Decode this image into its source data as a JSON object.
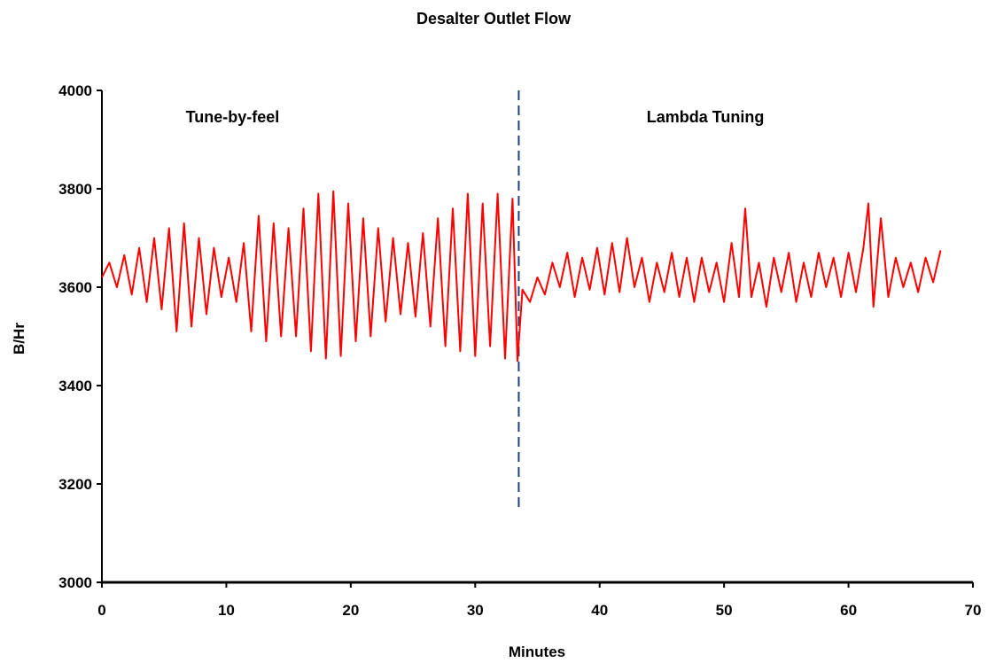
{
  "chart_data": {
    "type": "line",
    "title": "Desalter Outlet Flow",
    "xlabel": "Minutes",
    "ylabel": "B/Hr",
    "xlim": [
      0,
      70
    ],
    "ylim": [
      3000,
      4000
    ],
    "xticks": [
      0,
      10,
      20,
      30,
      40,
      50,
      60,
      70
    ],
    "yticks": [
      3000,
      3200,
      3400,
      3600,
      3800,
      4000
    ],
    "grid": false,
    "line_color": "#ff0000",
    "divider": {
      "x": 33.5,
      "y_range": [
        3150,
        4000
      ],
      "color": "#1f3f7f",
      "style": "dashed"
    },
    "annotations": [
      {
        "text": "Tune-by-feel",
        "x": 10.5,
        "y": 3935
      },
      {
        "text": "Lambda Tuning",
        "x": 48.5,
        "y": 3935
      }
    ],
    "series": [
      {
        "values": [
          [
            0.0,
            3620
          ],
          [
            0.6,
            3650
          ],
          [
            1.2,
            3600
          ],
          [
            1.8,
            3665
          ],
          [
            2.4,
            3585
          ],
          [
            3.0,
            3680
          ],
          [
            3.6,
            3570
          ],
          [
            4.2,
            3700
          ],
          [
            4.8,
            3555
          ],
          [
            5.4,
            3720
          ],
          [
            6.0,
            3510
          ],
          [
            6.6,
            3730
          ],
          [
            7.2,
            3520
          ],
          [
            7.8,
            3700
          ],
          [
            8.4,
            3545
          ],
          [
            9.0,
            3680
          ],
          [
            9.6,
            3580
          ],
          [
            10.2,
            3660
          ],
          [
            10.8,
            3570
          ],
          [
            11.4,
            3690
          ],
          [
            12.0,
            3510
          ],
          [
            12.6,
            3745
          ],
          [
            13.2,
            3490
          ],
          [
            13.8,
            3730
          ],
          [
            14.4,
            3500
          ],
          [
            15.0,
            3720
          ],
          [
            15.6,
            3500
          ],
          [
            16.2,
            3760
          ],
          [
            16.8,
            3470
          ],
          [
            17.4,
            3790
          ],
          [
            18.0,
            3455
          ],
          [
            18.6,
            3795
          ],
          [
            19.2,
            3460
          ],
          [
            19.8,
            3770
          ],
          [
            20.4,
            3490
          ],
          [
            21.0,
            3740
          ],
          [
            21.6,
            3500
          ],
          [
            22.2,
            3720
          ],
          [
            22.8,
            3530
          ],
          [
            23.4,
            3700
          ],
          [
            24.0,
            3545
          ],
          [
            24.6,
            3690
          ],
          [
            25.2,
            3540
          ],
          [
            25.8,
            3710
          ],
          [
            26.4,
            3520
          ],
          [
            27.0,
            3740
          ],
          [
            27.6,
            3480
          ],
          [
            28.2,
            3760
          ],
          [
            28.8,
            3470
          ],
          [
            29.4,
            3790
          ],
          [
            30.0,
            3460
          ],
          [
            30.6,
            3770
          ],
          [
            31.2,
            3480
          ],
          [
            31.8,
            3790
          ],
          [
            32.4,
            3455
          ],
          [
            33.0,
            3780
          ],
          [
            33.4,
            3450
          ],
          [
            33.8,
            3595
          ],
          [
            34.4,
            3570
          ],
          [
            35.0,
            3620
          ],
          [
            35.6,
            3585
          ],
          [
            36.2,
            3650
          ],
          [
            36.8,
            3600
          ],
          [
            37.4,
            3670
          ],
          [
            38.0,
            3580
          ],
          [
            38.6,
            3660
          ],
          [
            39.2,
            3595
          ],
          [
            39.8,
            3680
          ],
          [
            40.4,
            3585
          ],
          [
            41.0,
            3690
          ],
          [
            41.6,
            3590
          ],
          [
            42.2,
            3700
          ],
          [
            42.8,
            3600
          ],
          [
            43.4,
            3660
          ],
          [
            44.0,
            3570
          ],
          [
            44.6,
            3650
          ],
          [
            45.2,
            3590
          ],
          [
            45.8,
            3670
          ],
          [
            46.4,
            3580
          ],
          [
            47.0,
            3660
          ],
          [
            47.6,
            3570
          ],
          [
            48.2,
            3660
          ],
          [
            48.8,
            3590
          ],
          [
            49.4,
            3650
          ],
          [
            50.0,
            3570
          ],
          [
            50.6,
            3690
          ],
          [
            51.2,
            3580
          ],
          [
            51.7,
            3760
          ],
          [
            52.2,
            3580
          ],
          [
            52.8,
            3650
          ],
          [
            53.4,
            3560
          ],
          [
            54.0,
            3660
          ],
          [
            54.6,
            3590
          ],
          [
            55.2,
            3670
          ],
          [
            55.8,
            3570
          ],
          [
            56.4,
            3650
          ],
          [
            57.0,
            3580
          ],
          [
            57.6,
            3670
          ],
          [
            58.2,
            3600
          ],
          [
            58.8,
            3660
          ],
          [
            59.4,
            3580
          ],
          [
            60.0,
            3670
          ],
          [
            60.6,
            3590
          ],
          [
            61.2,
            3680
          ],
          [
            61.6,
            3770
          ],
          [
            62.0,
            3560
          ],
          [
            62.6,
            3740
          ],
          [
            63.2,
            3580
          ],
          [
            63.8,
            3660
          ],
          [
            64.4,
            3600
          ],
          [
            65.0,
            3650
          ],
          [
            65.6,
            3590
          ],
          [
            66.2,
            3660
          ],
          [
            66.8,
            3610
          ],
          [
            67.4,
            3675
          ]
        ]
      }
    ]
  }
}
